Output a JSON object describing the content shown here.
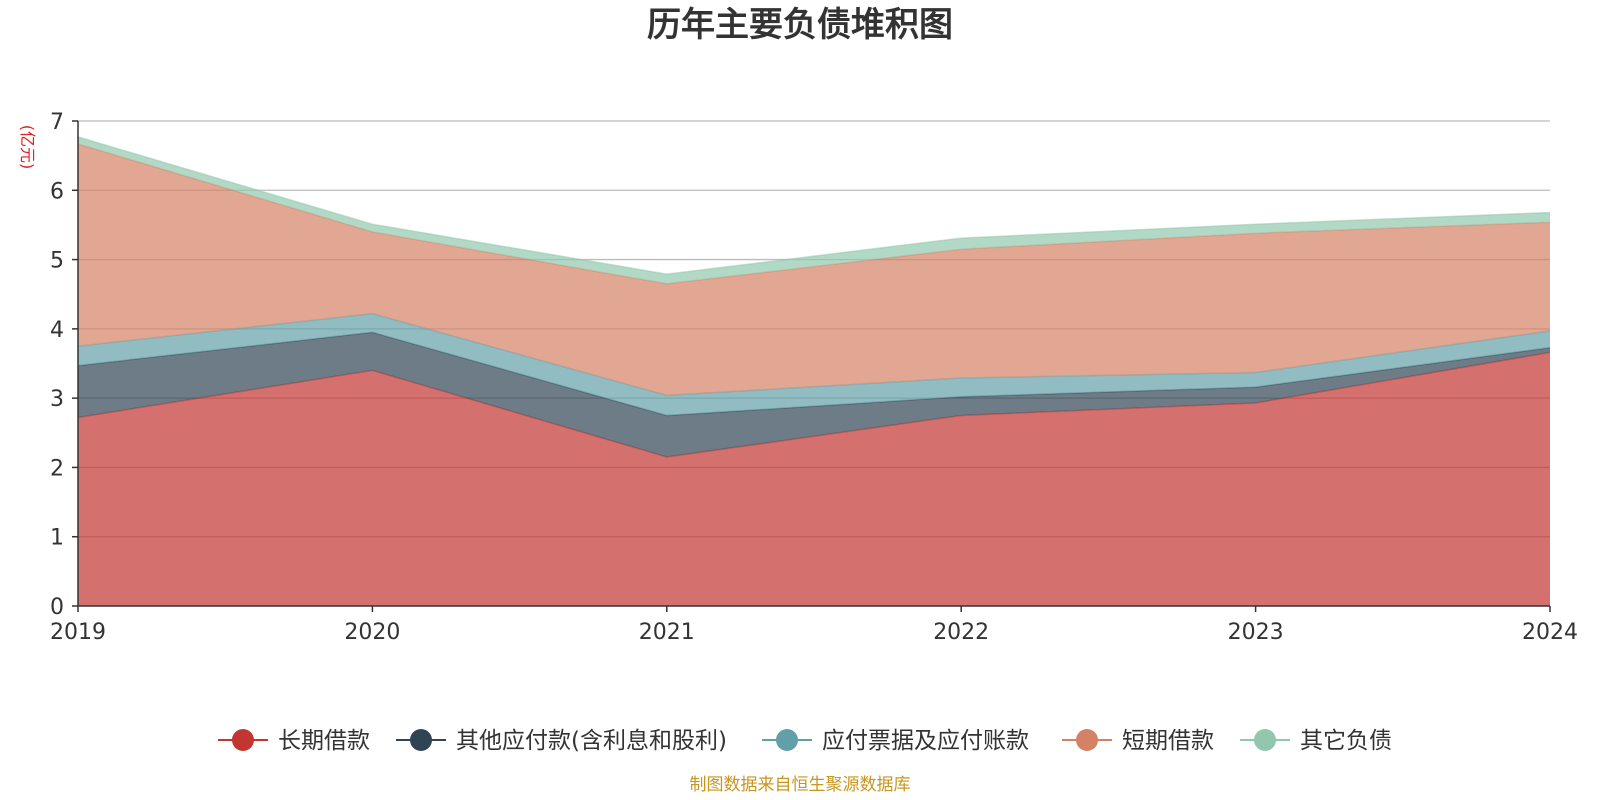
{
  "chart_data": {
    "type": "area",
    "stacked": true,
    "title": "历年主要负债堆积图",
    "unit_label": "(亿元)",
    "x": [
      "2019",
      "2020",
      "2021",
      "2022",
      "2023",
      "2024"
    ],
    "ylim": [
      0,
      7
    ],
    "yticks": [
      "0",
      "1",
      "2",
      "3",
      "4",
      "5",
      "6",
      "7"
    ],
    "grid": true,
    "legend_position": "bottom",
    "series": [
      {
        "name": "长期借款",
        "color": "#c23531",
        "values": [
          2.72,
          3.4,
          2.15,
          2.75,
          2.93,
          3.66
        ]
      },
      {
        "name": "其他应付款(含利息和股利)",
        "color": "#2f4554",
        "values": [
          0.75,
          0.55,
          0.6,
          0.27,
          0.23,
          0.07
        ]
      },
      {
        "name": "应付票据及应付账款",
        "color": "#61a0a8",
        "values": [
          0.28,
          0.27,
          0.29,
          0.27,
          0.21,
          0.24
        ]
      },
      {
        "name": "短期借款",
        "color": "#d48265",
        "values": [
          2.92,
          1.18,
          1.61,
          1.86,
          2.01,
          1.57
        ]
      },
      {
        "name": "其它负债",
        "color": "#91c7ae",
        "values": [
          0.1,
          0.11,
          0.14,
          0.16,
          0.13,
          0.14
        ]
      }
    ],
    "source": "制图数据来自恒生聚源数据库"
  }
}
